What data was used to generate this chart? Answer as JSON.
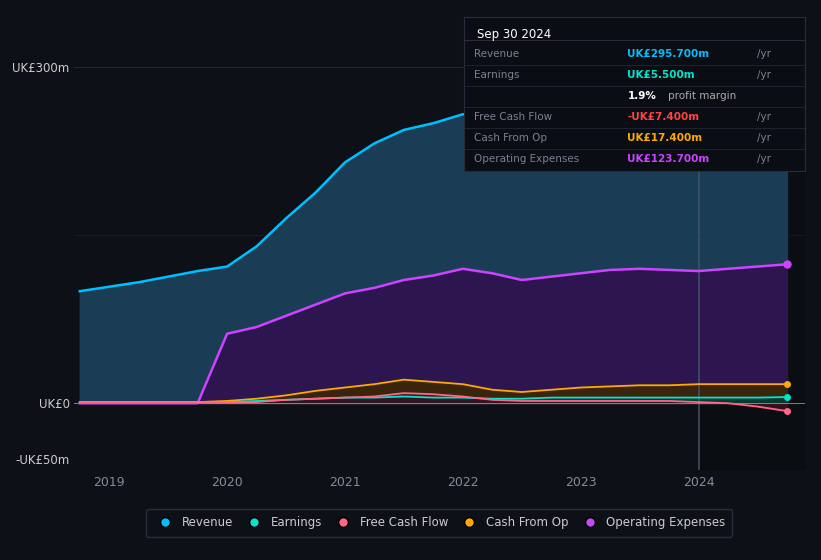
{
  "bg_color": "#0d1117",
  "plot_bg_color": "#0d1117",
  "info_box": {
    "date": "Sep 30 2024",
    "rows": [
      {
        "label": "Revenue",
        "value": "UK£295.700m /yr",
        "value_color": "#00bfff"
      },
      {
        "label": "Earnings",
        "value": "UK£5.500m /yr",
        "value_color": "#00e5cc"
      },
      {
        "label": "",
        "value": "1.9% profit margin",
        "value_color": "#ffffff"
      },
      {
        "label": "Free Cash Flow",
        "value": "-UK£7.400m /yr",
        "value_color": "#ff4444"
      },
      {
        "label": "Cash From Op",
        "value": "UK£17.400m /yr",
        "value_color": "#ffaa00"
      },
      {
        "label": "Operating Expenses",
        "value": "UK£123.700m /yr",
        "value_color": "#cc44ff"
      }
    ]
  },
  "x_years": [
    2018.75,
    2019.0,
    2019.25,
    2019.5,
    2019.75,
    2020.0,
    2020.25,
    2020.5,
    2020.75,
    2021.0,
    2021.25,
    2021.5,
    2021.75,
    2022.0,
    2022.25,
    2022.5,
    2022.75,
    2023.0,
    2023.25,
    2023.5,
    2023.75,
    2024.0,
    2024.25,
    2024.5,
    2024.75
  ],
  "revenue": [
    100,
    104,
    108,
    113,
    118,
    122,
    140,
    165,
    188,
    215,
    232,
    244,
    250,
    258,
    254,
    248,
    254,
    260,
    264,
    268,
    272,
    276,
    280,
    287,
    296
  ],
  "op_exp": [
    0,
    0,
    0,
    0,
    0,
    62,
    68,
    78,
    88,
    98,
    103,
    110,
    114,
    120,
    116,
    110,
    113,
    116,
    119,
    120,
    119,
    118,
    120,
    122,
    124
  ],
  "cash_op": [
    1,
    1,
    1,
    1,
    1,
    2,
    4,
    7,
    11,
    14,
    17,
    21,
    19,
    17,
    12,
    10,
    12,
    14,
    15,
    16,
    16,
    17,
    17,
    17,
    17
  ],
  "earnings": [
    1,
    1,
    1,
    1,
    1,
    1,
    2,
    3,
    4,
    5,
    5,
    6,
    5,
    5,
    4,
    4,
    5,
    5,
    5,
    5,
    5,
    5,
    5,
    5,
    5.5
  ],
  "fcf": [
    0.5,
    0.5,
    0.5,
    0.5,
    0.5,
    0.5,
    1,
    3,
    4,
    5,
    6,
    9,
    8,
    6,
    3,
    2,
    2,
    2,
    2,
    2,
    2,
    1,
    0,
    -3,
    -7
  ],
  "revenue_color": "#00bfff",
  "revenue_fill": "#1a3d55",
  "op_exp_color": "#cc44ff",
  "op_exp_fill": "#2d1550",
  "cash_op_color": "#ffaa00",
  "cash_op_fill": "#3d2800",
  "earnings_color": "#00e5cc",
  "earnings_fill": "#003d35",
  "fcf_color": "#ff6688",
  "fcf_fill": "#3d1020",
  "divider_x": 2024.0,
  "ylim": [
    -60,
    330
  ],
  "yticks": [
    -50,
    0,
    300
  ],
  "ytick_labels": [
    "-UK£50m",
    "UK£0",
    "UK£300m"
  ],
  "xtick_positions": [
    2019,
    2020,
    2021,
    2022,
    2023,
    2024
  ],
  "xtick_labels": [
    "2019",
    "2020",
    "2021",
    "2022",
    "2023",
    "2024"
  ],
  "legend_items": [
    {
      "label": "Revenue",
      "color": "#00bfff"
    },
    {
      "label": "Earnings",
      "color": "#00e5cc"
    },
    {
      "label": "Free Cash Flow",
      "color": "#ff6688"
    },
    {
      "label": "Cash From Op",
      "color": "#ffaa00"
    },
    {
      "label": "Operating Expenses",
      "color": "#cc44ff"
    }
  ]
}
